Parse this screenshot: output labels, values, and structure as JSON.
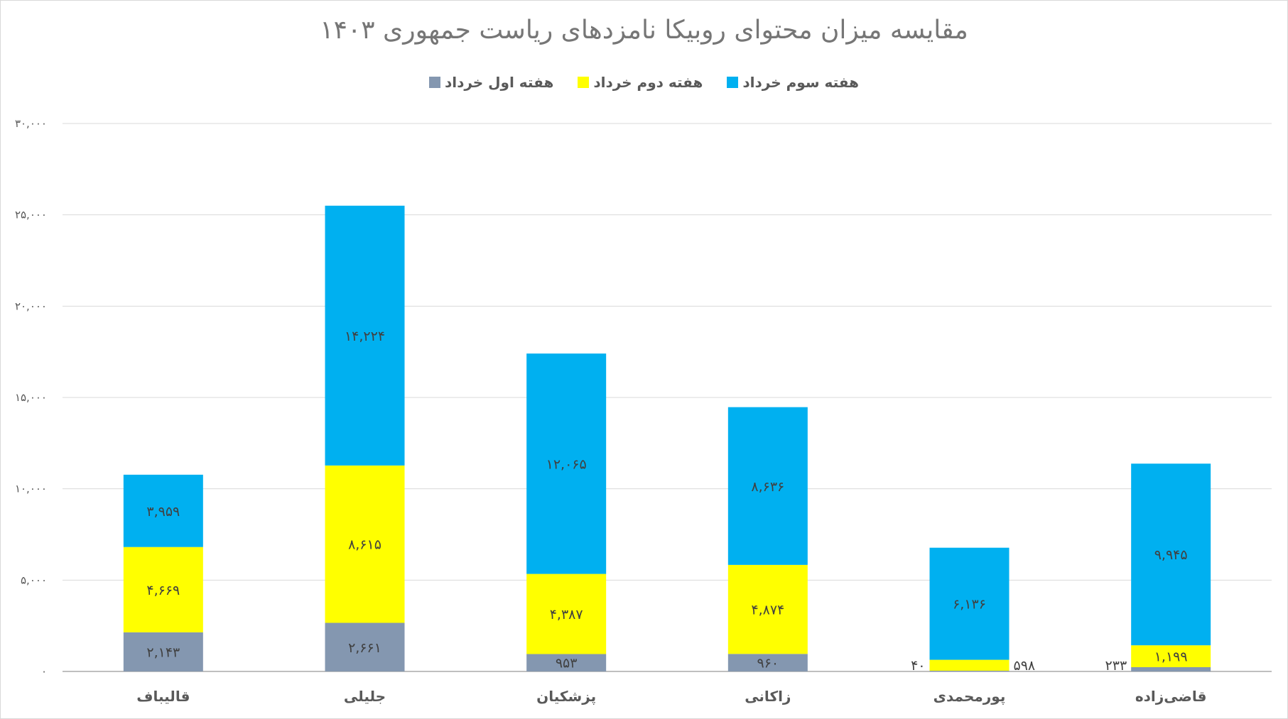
{
  "chart_data": {
    "type": "bar",
    "stacked": true,
    "title": "مقایسه میزان محتوای روبیکا نامزدهای ریاست  جمهوری ۱۴۰۳",
    "xlabel": "",
    "ylabel": "",
    "ylim": [
      0,
      30000
    ],
    "grid": true,
    "legend_position": "top",
    "categories": [
      "قالیباف",
      "جلیلی",
      "پزشکیان",
      "زاکانی",
      "پورمحمدی",
      "قاضی‌زاده"
    ],
    "y_ticks": [
      0,
      5000,
      10000,
      15000,
      20000,
      25000,
      30000
    ],
    "y_tick_labels": [
      "۰",
      "۵,۰۰۰",
      "۱۰,۰۰۰",
      "۱۵,۰۰۰",
      "۲۰,۰۰۰",
      "۲۵,۰۰۰",
      "۳۰,۰۰۰"
    ],
    "series": [
      {
        "name": "هفته اول خرداد",
        "color": "#8497b0",
        "values": [
          2143,
          2661,
          953,
          960,
          40,
          233
        ],
        "labels": [
          "۲,۱۴۳",
          "۲,۶۶۱",
          "۹۵۳",
          "۹۶۰",
          "۴۰",
          "۲۳۳"
        ]
      },
      {
        "name": "هفته دوم خرداد",
        "color": "#ffff00",
        "values": [
          4669,
          8615,
          4387,
          4874,
          598,
          1199
        ],
        "labels": [
          "۴,۶۶۹",
          "۸,۶۱۵",
          "۴,۳۸۷",
          "۴,۸۷۴",
          "۵۹۸",
          "۱,۱۹۹"
        ]
      },
      {
        "name": "هفته سوم خرداد",
        "color": "#00b0f0",
        "values": [
          3959,
          14224,
          12065,
          8636,
          6136,
          9945
        ],
        "labels": [
          "۳,۹۵۹",
          "۱۴,۲۲۴",
          "۱۲,۰۶۵",
          "۸,۶۳۶",
          "۶,۱۳۶",
          "۹,۹۴۵"
        ]
      }
    ]
  }
}
